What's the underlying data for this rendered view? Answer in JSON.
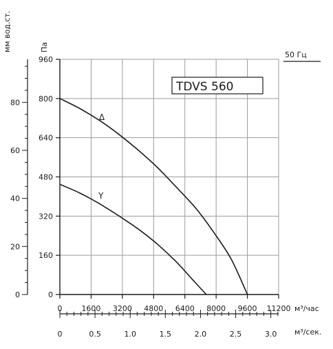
{
  "chart_data": {
    "type": "line",
    "title": "TDVS 560",
    "frequency_label": "50 Гц",
    "left_axis_label": "мм вод.ст.",
    "pa_axis_label": "Па",
    "x_unit_label": "м³/час",
    "x2_unit_label": "м³/сек.",
    "xlim": [
      0,
      11200
    ],
    "ylim": [
      0,
      960
    ],
    "x_ticks": [
      0,
      1600,
      3200,
      4800,
      6400,
      8000,
      9600,
      11200
    ],
    "y_ticks": [
      0,
      160,
      320,
      480,
      640,
      800,
      960
    ],
    "mm_ticks": [
      0,
      20,
      40,
      60,
      80
    ],
    "x2_ticks": [
      "0",
      "0.5",
      "1.0",
      "1.5",
      "2.0",
      "2.5",
      "3.0"
    ],
    "x2_tick_values": [
      0,
      0.5,
      1.0,
      1.5,
      2.0,
      2.5,
      3.0
    ],
    "grid": true,
    "series": [
      {
        "name": "Δ",
        "x": [
          0,
          1000,
          2000,
          3000,
          4000,
          5000,
          6000,
          7000,
          8000,
          8800,
          9600
        ],
        "y": [
          800,
          760,
          712,
          655,
          590,
          518,
          435,
          348,
          240,
          140,
          0
        ]
      },
      {
        "name": "Y",
        "x": [
          0,
          1000,
          2000,
          3000,
          4000,
          5000,
          6000,
          6800,
          7500
        ],
        "y": [
          450,
          415,
          372,
          322,
          268,
          205,
          130,
          60,
          0
        ]
      }
    ]
  }
}
